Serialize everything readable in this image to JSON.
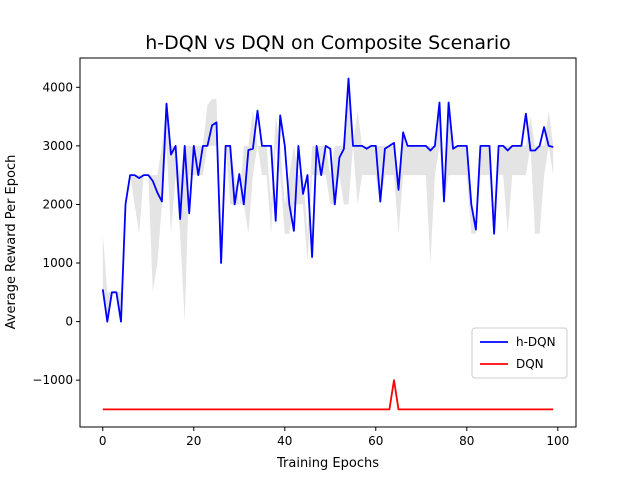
{
  "chart_data": {
    "type": "line",
    "title": "h-DQN vs DQN on Composite Scenario",
    "xlabel": "Training Epochs",
    "ylabel": "Average Reward Per Epoch",
    "xlim": [
      -5,
      104
    ],
    "ylim": [
      -1800,
      4500
    ],
    "xticks": [
      0,
      20,
      40,
      60,
      80,
      100
    ],
    "yticks": [
      -1000,
      0,
      1000,
      2000,
      3000,
      4000
    ],
    "xtick_labels": [
      "0",
      "20",
      "40",
      "60",
      "80",
      "100"
    ],
    "ytick_labels": [
      "−1000",
      "0",
      "1000",
      "2000",
      "3000",
      "4000"
    ],
    "grid": false,
    "legend_position": "lower-right",
    "x": [
      0,
      1,
      2,
      3,
      4,
      5,
      6,
      7,
      8,
      9,
      10,
      11,
      12,
      13,
      14,
      15,
      16,
      17,
      18,
      19,
      20,
      21,
      22,
      23,
      24,
      25,
      26,
      27,
      28,
      29,
      30,
      31,
      32,
      33,
      34,
      35,
      36,
      37,
      38,
      39,
      40,
      41,
      42,
      43,
      44,
      45,
      46,
      47,
      48,
      49,
      50,
      51,
      52,
      53,
      54,
      55,
      56,
      57,
      58,
      59,
      60,
      61,
      62,
      63,
      64,
      65,
      66,
      67,
      68,
      69,
      70,
      71,
      72,
      73,
      74,
      75,
      76,
      77,
      78,
      79,
      80,
      81,
      82,
      83,
      84,
      85,
      86,
      87,
      88,
      89,
      90,
      91,
      92,
      93,
      94,
      95,
      96,
      97,
      98,
      99
    ],
    "band": {
      "upper": [
        1500,
        500,
        500,
        500,
        500,
        2000,
        2500,
        2500,
        2500,
        2500,
        2500,
        2500,
        2500,
        3000,
        3700,
        3000,
        3000,
        2500,
        3000,
        3000,
        3000,
        3000,
        3000,
        3700,
        3800,
        3800,
        1000,
        3000,
        3000,
        2500,
        2000,
        3000,
        3000,
        3600,
        3000,
        3000,
        3000,
        2000,
        3500,
        3000,
        2000,
        2500,
        3000,
        2500,
        2500,
        1500,
        3000,
        3000,
        3000,
        3000,
        2500,
        3000,
        3000,
        3000,
        4200,
        3000,
        3600,
        3000,
        3000,
        3000,
        3000,
        3000,
        3000,
        3000,
        3000,
        2500,
        3300,
        3000,
        3000,
        3000,
        3000,
        3000,
        3000,
        3000,
        3700,
        2000,
        3700,
        3000,
        3000,
        3000,
        3000,
        2000,
        1600,
        3000,
        3000,
        3000,
        1500,
        3000,
        3000,
        3000,
        3000,
        3000,
        3000,
        3000,
        3500,
        3000,
        3000,
        3000,
        3600,
        3000
      ],
      "lower": [
        500,
        0,
        500,
        500,
        0,
        2000,
        2500,
        2000,
        1500,
        2500,
        2500,
        500,
        1000,
        2000,
        3000,
        1500,
        2500,
        1500,
        0,
        2500,
        2500,
        2500,
        2500,
        3000,
        3000,
        3000,
        1000,
        3000,
        2000,
        2000,
        2000,
        2000,
        1500,
        2500,
        3000,
        2500,
        2500,
        1500,
        3000,
        2500,
        1500,
        1500,
        2000,
        2000,
        2000,
        1000,
        2500,
        2500,
        2500,
        2500,
        2000,
        2000,
        2500,
        2000,
        2000,
        3000,
        2000,
        2500,
        2500,
        2500,
        2500,
        2000,
        2500,
        2500,
        2500,
        1500,
        2500,
        2500,
        2500,
        2500,
        2500,
        2500,
        1000,
        2500,
        3000,
        2000,
        2500,
        2500,
        2500,
        2500,
        2500,
        1500,
        1500,
        2500,
        2500,
        2500,
        1500,
        2500,
        2500,
        1500,
        2500,
        2500,
        2500,
        2500,
        3000,
        1500,
        1500,
        2500,
        3000,
        2500
      ]
    },
    "series": [
      {
        "name": "h-DQN",
        "color": "#0000ff",
        "values": [
          550,
          0,
          500,
          500,
          0,
          2000,
          2500,
          2500,
          2450,
          2500,
          2500,
          2400,
          2200,
          2050,
          3720,
          2850,
          3000,
          1750,
          3000,
          1850,
          3000,
          2500,
          3000,
          3000,
          3350,
          3400,
          1000,
          3000,
          3000,
          2000,
          2520,
          2000,
          2930,
          2950,
          3600,
          3000,
          3000,
          3000,
          1720,
          3520,
          3000,
          2000,
          1550,
          3000,
          2180,
          2500,
          1100,
          3000,
          2500,
          3000,
          2950,
          2000,
          2800,
          2950,
          4150,
          3000,
          3000,
          3000,
          2950,
          3000,
          3000,
          2050,
          2950,
          3000,
          3050,
          2250,
          3230,
          3000,
          3000,
          3000,
          3000,
          3000,
          2920,
          3000,
          3740,
          2050,
          3740,
          2950,
          3000,
          3000,
          3000,
          2000,
          1570,
          3000,
          3000,
          3000,
          1500,
          3000,
          3000,
          2920,
          3000,
          3000,
          3000,
          3550,
          2920,
          2920,
          3000,
          3320,
          3000,
          2980
        ]
      },
      {
        "name": "DQN",
        "color": "#ff0000",
        "values": [
          -1500,
          -1500,
          -1500,
          -1500,
          -1500,
          -1500,
          -1500,
          -1500,
          -1500,
          -1500,
          -1500,
          -1500,
          -1500,
          -1500,
          -1500,
          -1500,
          -1500,
          -1500,
          -1500,
          -1500,
          -1500,
          -1500,
          -1500,
          -1500,
          -1500,
          -1500,
          -1500,
          -1500,
          -1500,
          -1500,
          -1500,
          -1500,
          -1500,
          -1500,
          -1500,
          -1500,
          -1500,
          -1500,
          -1500,
          -1500,
          -1500,
          -1500,
          -1500,
          -1500,
          -1500,
          -1500,
          -1500,
          -1500,
          -1500,
          -1500,
          -1500,
          -1500,
          -1500,
          -1500,
          -1500,
          -1500,
          -1500,
          -1500,
          -1500,
          -1500,
          -1500,
          -1500,
          -1500,
          -1500,
          -1000,
          -1500,
          -1500,
          -1500,
          -1500,
          -1500,
          -1500,
          -1500,
          -1500,
          -1500,
          -1500,
          -1500,
          -1500,
          -1500,
          -1500,
          -1500,
          -1500,
          -1500,
          -1500,
          -1500,
          -1500,
          -1500,
          -1500,
          -1500,
          -1500,
          -1500,
          -1500,
          -1500,
          -1500,
          -1500,
          -1500,
          -1500,
          -1500,
          -1500,
          -1500,
          -1500
        ]
      }
    ]
  }
}
